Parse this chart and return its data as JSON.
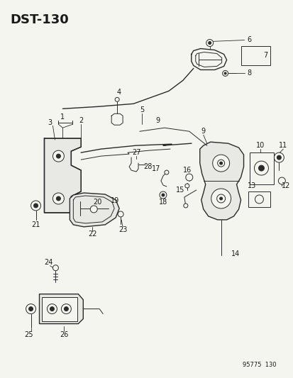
{
  "title": "DST−130",
  "background_color": "#f5f5f0",
  "line_color": "#2a2a2a",
  "text_color": "#1a1a1a",
  "watermark": "95775  130",
  "fig_width": 4.14,
  "fig_height": 5.33,
  "dpi": 100
}
